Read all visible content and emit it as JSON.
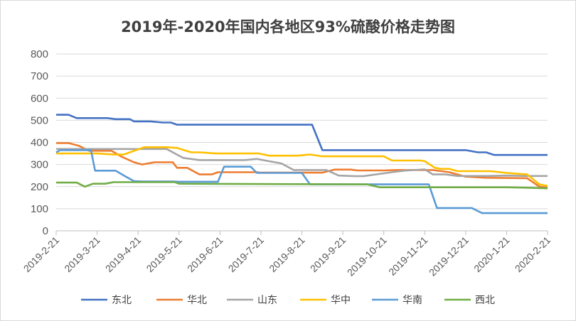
{
  "chart_data": {
    "type": "line",
    "title": "2019年-2020年国内各地区93%硫酸价格走势图",
    "xlabel": "",
    "ylabel": "",
    "ylim": [
      0,
      800
    ],
    "yticks": [
      "0",
      "100",
      "200",
      "300",
      "400",
      "500",
      "600",
      "700",
      "800"
    ],
    "x_ticks": [
      "2019-2-21",
      "2019-3-21",
      "2019-4-21",
      "2019-5-21",
      "2019-6-21",
      "2019-7-21",
      "2019-8-21",
      "2019-9-21",
      "2019-10-21",
      "2019-11-21",
      "2019-12-21",
      "2020-1-21",
      "2020-2-21"
    ],
    "grid": "horizontal",
    "legend_position": "bottom",
    "series": [
      {
        "name": "东北",
        "color": "#4472c4",
        "points": [
          [
            0,
            525
          ],
          [
            0.3,
            525
          ],
          [
            0.5,
            510
          ],
          [
            1.25,
            510
          ],
          [
            1.45,
            505
          ],
          [
            1.8,
            505
          ],
          [
            1.9,
            495
          ],
          [
            2.3,
            495
          ],
          [
            2.6,
            490
          ],
          [
            2.8,
            490
          ],
          [
            2.95,
            480
          ],
          [
            6.0,
            480
          ],
          [
            6.25,
            480
          ],
          [
            6.5,
            365
          ],
          [
            10.0,
            365
          ],
          [
            10.3,
            355
          ],
          [
            10.5,
            355
          ],
          [
            10.7,
            343
          ],
          [
            12.0,
            343
          ]
        ]
      },
      {
        "name": "华北",
        "color": "#ed7d31",
        "points": [
          [
            0,
            397
          ],
          [
            0.3,
            397
          ],
          [
            0.55,
            385
          ],
          [
            0.8,
            362
          ],
          [
            1.35,
            362
          ],
          [
            1.6,
            335
          ],
          [
            1.9,
            310
          ],
          [
            2.1,
            300
          ],
          [
            2.4,
            310
          ],
          [
            2.85,
            310
          ],
          [
            2.95,
            285
          ],
          [
            3.2,
            285
          ],
          [
            3.5,
            255
          ],
          [
            3.8,
            255
          ],
          [
            3.95,
            265
          ],
          [
            4.9,
            265
          ],
          [
            5.0,
            263
          ],
          [
            6.5,
            263
          ],
          [
            6.8,
            277
          ],
          [
            7.2,
            277
          ],
          [
            7.35,
            273
          ],
          [
            8.0,
            273
          ],
          [
            8.3,
            275
          ],
          [
            9.0,
            275
          ],
          [
            9.2,
            275
          ],
          [
            9.6,
            265
          ],
          [
            10.0,
            245
          ],
          [
            10.5,
            240
          ],
          [
            11.5,
            238
          ],
          [
            11.8,
            200
          ],
          [
            12.0,
            195
          ]
        ]
      },
      {
        "name": "山东",
        "color": "#a5a5a5",
        "points": [
          [
            0,
            370
          ],
          [
            2.7,
            370
          ],
          [
            2.9,
            350
          ],
          [
            3.1,
            330
          ],
          [
            3.5,
            320
          ],
          [
            4.6,
            320
          ],
          [
            4.9,
            325
          ],
          [
            5.2,
            315
          ],
          [
            5.5,
            305
          ],
          [
            5.8,
            275
          ],
          [
            6.6,
            275
          ],
          [
            6.9,
            250
          ],
          [
            7.3,
            247
          ],
          [
            7.5,
            247
          ],
          [
            8.2,
            265
          ],
          [
            8.5,
            272
          ],
          [
            9.0,
            278
          ],
          [
            9.2,
            255
          ],
          [
            9.5,
            255
          ],
          [
            9.8,
            248
          ],
          [
            10.5,
            248
          ],
          [
            11.0,
            250
          ],
          [
            11.5,
            248
          ],
          [
            12.0,
            248
          ]
        ]
      },
      {
        "name": "华中",
        "color": "#ffc000",
        "points": [
          [
            0,
            350
          ],
          [
            1.0,
            350
          ],
          [
            1.4,
            345
          ],
          [
            1.65,
            345
          ],
          [
            1.95,
            365
          ],
          [
            2.15,
            378
          ],
          [
            2.7,
            378
          ],
          [
            2.95,
            375
          ],
          [
            3.3,
            355
          ],
          [
            3.5,
            355
          ],
          [
            3.9,
            350
          ],
          [
            4.95,
            350
          ],
          [
            5.2,
            340
          ],
          [
            5.9,
            340
          ],
          [
            6.2,
            345
          ],
          [
            6.5,
            337
          ],
          [
            8.0,
            337
          ],
          [
            8.2,
            318
          ],
          [
            8.9,
            318
          ],
          [
            9.0,
            315
          ],
          [
            9.25,
            285
          ],
          [
            9.4,
            280
          ],
          [
            9.6,
            280
          ],
          [
            9.8,
            270
          ],
          [
            10.6,
            270
          ],
          [
            11.0,
            262
          ],
          [
            11.5,
            255
          ],
          [
            11.8,
            210
          ],
          [
            12.0,
            203
          ]
        ]
      },
      {
        "name": "华南",
        "color": "#5b9bd5",
        "points": [
          [
            0,
            355
          ],
          [
            0.1,
            365
          ],
          [
            0.85,
            365
          ],
          [
            0.95,
            272
          ],
          [
            1.45,
            272
          ],
          [
            1.7,
            245
          ],
          [
            1.9,
            225
          ],
          [
            2.1,
            223
          ],
          [
            2.85,
            223
          ],
          [
            3.0,
            222
          ],
          [
            3.95,
            222
          ],
          [
            4.1,
            290
          ],
          [
            4.75,
            290
          ],
          [
            4.9,
            262
          ],
          [
            6.0,
            262
          ],
          [
            6.2,
            210
          ],
          [
            9.1,
            210
          ],
          [
            9.3,
            103
          ],
          [
            10.15,
            103
          ],
          [
            10.4,
            80
          ],
          [
            12.0,
            80
          ]
        ]
      },
      {
        "name": "西北",
        "color": "#70ad47",
        "points": [
          [
            0,
            218
          ],
          [
            0.5,
            218
          ],
          [
            0.7,
            200
          ],
          [
            0.9,
            213
          ],
          [
            1.2,
            213
          ],
          [
            1.4,
            220
          ],
          [
            2.9,
            220
          ],
          [
            3.0,
            213
          ],
          [
            7.6,
            210
          ],
          [
            7.9,
            197
          ],
          [
            9.0,
            197
          ],
          [
            11.0,
            197
          ],
          [
            11.5,
            195
          ],
          [
            12.0,
            192
          ]
        ]
      }
    ]
  }
}
